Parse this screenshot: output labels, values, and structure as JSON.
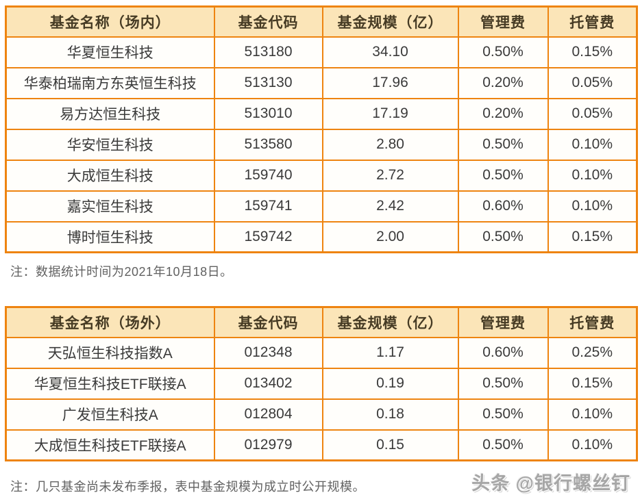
{
  "colors": {
    "table_border": "#ee8410",
    "header_fill": "#fbe5b8",
    "header_text": "#463b24",
    "body_text": "#3a3a3a",
    "note_text": "#616161",
    "watermark_text": "#a6a6a6"
  },
  "chart_data": [
    {
      "type": "table",
      "title": "基金名称（场内）",
      "headers": [
        "基金名称（场内）",
        "基金代码",
        "基金规模（亿）",
        "管理费",
        "托管费"
      ],
      "rows": [
        [
          "华夏恒生科技",
          "513180",
          "34.10",
          "0.50%",
          "0.15%"
        ],
        [
          "华泰柏瑞南方东英恒生科技",
          "513130",
          "17.96",
          "0.20%",
          "0.05%"
        ],
        [
          "易方达恒生科技",
          "513010",
          "17.19",
          "0.20%",
          "0.05%"
        ],
        [
          "华安恒生科技",
          "513580",
          "2.80",
          "0.50%",
          "0.10%"
        ],
        [
          "大成恒生科技",
          "159740",
          "2.72",
          "0.50%",
          "0.10%"
        ],
        [
          "嘉实恒生科技",
          "159741",
          "2.42",
          "0.60%",
          "0.10%"
        ],
        [
          "博时恒生科技",
          "159742",
          "2.00",
          "0.50%",
          "0.15%"
        ]
      ],
      "note": "注：数据统计时间为2021年10月18日。"
    },
    {
      "type": "table",
      "title": "基金名称（场外）",
      "headers": [
        "基金名称（场外）",
        "基金代码",
        "基金规模（亿）",
        "管理费",
        "托管费"
      ],
      "rows": [
        [
          "天弘恒生科技指数A",
          "012348",
          "1.17",
          "0.60%",
          "0.25%"
        ],
        [
          "华夏恒生科技ETF联接A",
          "013402",
          "0.19",
          "0.50%",
          "0.15%"
        ],
        [
          "广发恒生科技A",
          "012804",
          "0.18",
          "0.50%",
          "0.10%"
        ],
        [
          "大成恒生科技ETF联接A",
          "012979",
          "0.15",
          "0.50%",
          "0.10%"
        ]
      ],
      "note": "注：几只基金尚未发布季报，表中基金规模为成立时公开规模。"
    }
  ],
  "watermark": "头条 @银行螺丝钉"
}
